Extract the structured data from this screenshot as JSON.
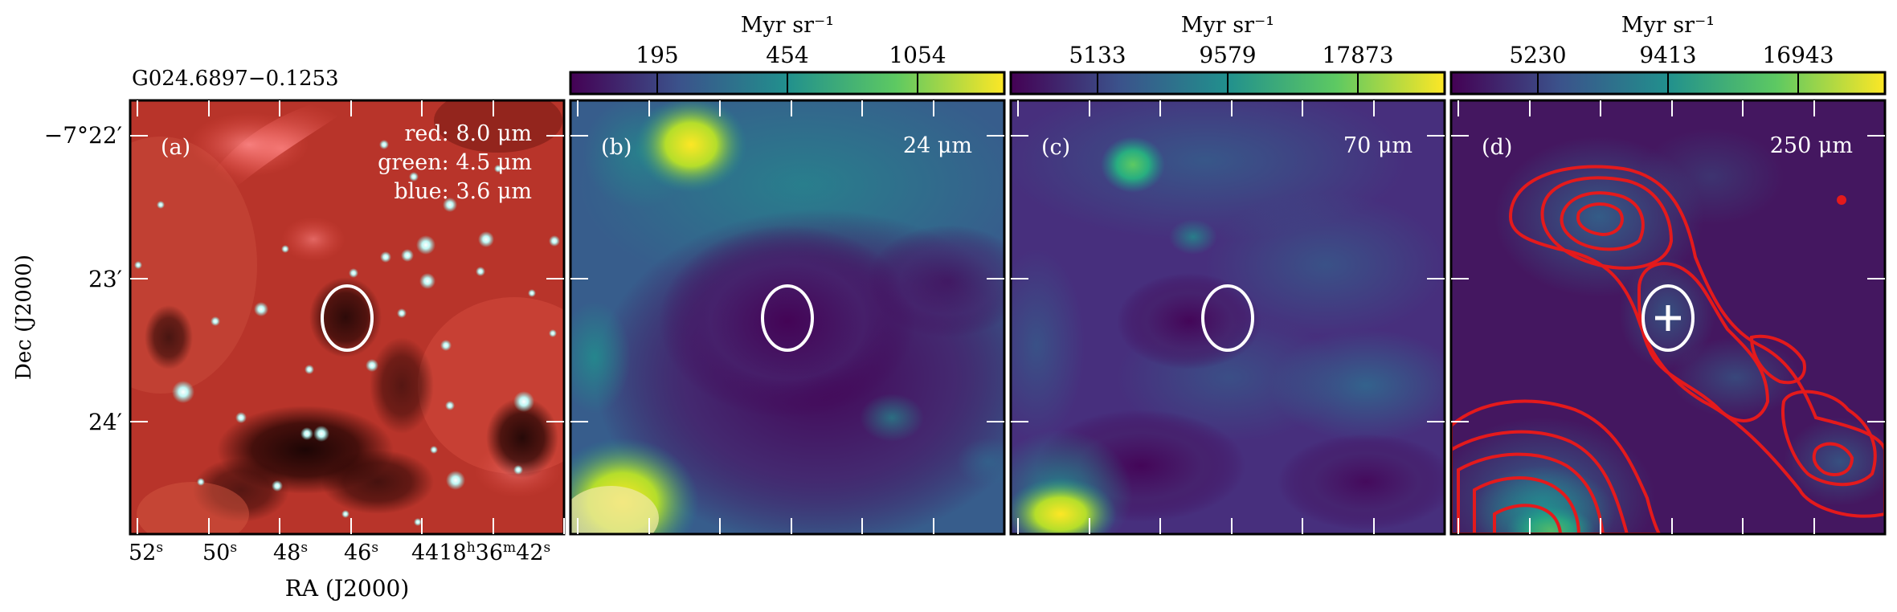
{
  "figure": {
    "source_title": "G024.6897−0.1253",
    "y_axis_label": "Dec (J2000)",
    "x_axis_label": "RA (J2000)",
    "dec_ticks": [
      "−7°22′",
      "23′",
      "24′"
    ],
    "ra_ticks": [
      {
        "main": "52",
        "sup": "s"
      },
      {
        "main": "50",
        "sup": "s"
      },
      {
        "main": "48",
        "sup": "s"
      },
      {
        "main": "46",
        "sup": "s"
      },
      {
        "main": "44",
        "sup": ""
      },
      {
        "main": "18",
        "sup": "h"
      },
      {
        "main": "36",
        "sup": "m"
      },
      {
        "main": "42",
        "sup": "s"
      }
    ]
  },
  "panels": [
    {
      "id": "a",
      "tag": "(a)",
      "legend": [
        "red: 8.0 μm",
        "green: 4.5 μm",
        "blue: 3.6 μm"
      ],
      "colorbar": null
    },
    {
      "id": "b",
      "tag": "(b)",
      "wavelength": "24 μm",
      "colorbar": {
        "unit": "Myr sr⁻¹",
        "ticks": [
          "195",
          "454",
          "1054"
        ]
      }
    },
    {
      "id": "c",
      "tag": "(c)",
      "wavelength": "70 μm",
      "colorbar": {
        "unit": "Myr sr⁻¹",
        "ticks": [
          "5133",
          "9579",
          "17873"
        ]
      }
    },
    {
      "id": "d",
      "tag": "(d)",
      "wavelength": "250 μm",
      "colorbar": {
        "unit": "Myr sr⁻¹",
        "ticks": [
          "5230",
          "9413",
          "16943"
        ]
      }
    }
  ],
  "colors": {
    "viridis": [
      "#440154",
      "#3b528b",
      "#21908d",
      "#5dc962",
      "#fde725"
    ],
    "contour": "#e41a1c",
    "ellipse": "#ffffff",
    "rgb_background": "#b8342a"
  },
  "icons": {
    "source_ellipse": "ellipse-icon",
    "peak_marker": "plus-icon"
  }
}
